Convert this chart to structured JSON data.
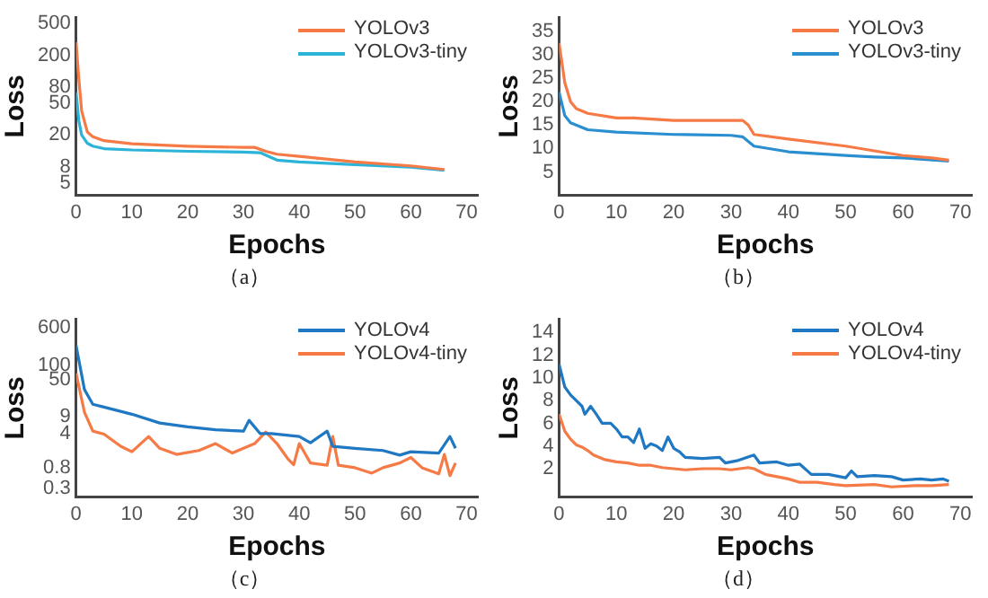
{
  "chart_data": [
    {
      "type": "line",
      "xlabel": "Epochs",
      "ylabel": "Loss",
      "annotations": [
        "（a）"
      ],
      "log": "y",
      "xlim": [
        0,
        72
      ],
      "xticks": [
        0,
        10,
        20,
        30,
        40,
        50,
        60,
        70
      ],
      "ylim": [
        3.5,
        600
      ],
      "yticks": [
        5,
        8,
        20,
        50,
        80,
        200,
        500
      ],
      "legend": "top right",
      "series": [
        {
          "name": "YOLOv3",
          "color": "#f67a45",
          "x": [
            0,
            0.5,
            1,
            2,
            3,
            5,
            10,
            20,
            30,
            32,
            34,
            36,
            40,
            50,
            60,
            66
          ],
          "values": [
            290,
            100,
            40,
            22,
            19,
            17,
            15.5,
            14.5,
            14,
            14,
            12.5,
            11.5,
            10.8,
            9.2,
            8.2,
            7.4
          ]
        },
        {
          "name": "YOLOv3-tiny",
          "color": "#2bb3d8",
          "x": [
            0,
            0.5,
            1,
            2,
            3,
            5,
            10,
            20,
            30,
            33,
            36,
            40,
            50,
            60,
            66
          ],
          "values": [
            68,
            30,
            20,
            15.8,
            14.5,
            13.5,
            13,
            12.5,
            12.2,
            12,
            9.7,
            9.2,
            8.5,
            7.9,
            7.2
          ]
        }
      ]
    },
    {
      "type": "line",
      "xlabel": "Epochs",
      "ylabel": "Loss",
      "annotations": [
        "（b）"
      ],
      "xlim": [
        0,
        72
      ],
      "xticks": [
        0,
        10,
        20,
        30,
        40,
        50,
        60,
        70
      ],
      "ylim": [
        0,
        38
      ],
      "yticks": [
        5,
        10,
        15,
        20,
        25,
        30,
        35
      ],
      "legend": "top right",
      "series": [
        {
          "name": "YOLOv3",
          "color": "#f67a45",
          "x": [
            0,
            1,
            2,
            3,
            5,
            10,
            13,
            20,
            25,
            32,
            33,
            34,
            40,
            50,
            55,
            60,
            65,
            68
          ],
          "values": [
            32.5,
            24,
            20,
            18.5,
            17.5,
            16.5,
            16.5,
            16,
            16,
            16,
            15,
            13,
            12,
            10.5,
            9.5,
            8.5,
            8,
            7.5
          ]
        },
        {
          "name": "YOLOv3-tiny",
          "color": "#2a8fd0",
          "x": [
            0,
            1,
            2,
            5,
            10,
            20,
            30,
            32,
            34,
            40,
            50,
            55,
            60,
            68
          ],
          "values": [
            22,
            17,
            15.5,
            14,
            13.5,
            13,
            12.8,
            12.5,
            10.5,
            9.3,
            8.5,
            8.2,
            8,
            7.3
          ]
        }
      ]
    },
    {
      "type": "line",
      "xlabel": "Epochs",
      "ylabel": "Loss",
      "annotations": [
        "（c）"
      ],
      "log": "y",
      "xlim": [
        0,
        72
      ],
      "xticks": [
        0,
        10,
        20,
        30,
        40,
        50,
        60,
        70
      ],
      "ylim": [
        0.2,
        900
      ],
      "yticks": [
        0.3,
        0.8,
        4,
        9,
        50,
        100,
        600
      ],
      "legend": "top right",
      "series": [
        {
          "name": "YOLOv4",
          "color": "#1f78c1",
          "x": [
            0,
            1.5,
            3,
            5,
            10,
            15,
            20,
            25,
            30,
            31,
            33,
            35,
            40,
            42,
            45,
            46,
            50,
            55,
            58,
            60,
            65,
            67,
            68
          ],
          "values": [
            257,
            32,
            16,
            14,
            10,
            6.6,
            5.5,
            4.8,
            4.5,
            7.5,
            4,
            4,
            3.5,
            2.6,
            4.5,
            2.2,
            2,
            1.8,
            1.45,
            1.7,
            1.6,
            3.5,
            2
          ]
        },
        {
          "name": "YOLOv4-tiny",
          "color": "#f67a45",
          "x": [
            0,
            1.5,
            3,
            5,
            8,
            10,
            13,
            15,
            18,
            22,
            25,
            28,
            32,
            34,
            36,
            38,
            39,
            40,
            42,
            45,
            46,
            47,
            50,
            53,
            55,
            58,
            60,
            62,
            65,
            66,
            67,
            68
          ],
          "values": [
            69,
            11,
            4.5,
            3.9,
            2.2,
            1.7,
            3.5,
            2,
            1.5,
            1.8,
            2.5,
            1.6,
            2.5,
            4.3,
            2.5,
            1.2,
            0.92,
            2.5,
            1,
            0.9,
            3.5,
            0.9,
            0.8,
            0.62,
            0.8,
            1,
            1.3,
            0.8,
            0.6,
            1.5,
            0.55,
            1
          ]
        }
      ]
    },
    {
      "type": "line",
      "xlabel": "Epochs",
      "ylabel": "Loss",
      "annotations": [
        "（d）"
      ],
      "xlim": [
        0,
        72
      ],
      "xticks": [
        0,
        10,
        20,
        30,
        40,
        50,
        60,
        70
      ],
      "ylim": [
        -0.5,
        15.2
      ],
      "yticks": [
        2,
        4,
        6,
        8,
        10,
        12,
        14
      ],
      "legend": "top right",
      "series": [
        {
          "name": "YOLOv4",
          "color": "#1f78c1",
          "x": [
            0,
            1,
            2,
            3,
            4,
            4.5,
            5.5,
            6.5,
            7.5,
            9,
            10,
            11,
            12,
            13,
            14,
            15,
            16,
            17,
            18,
            19,
            20,
            21,
            22,
            25,
            28,
            29,
            31,
            34,
            35,
            38,
            40,
            42,
            44,
            47,
            50,
            51,
            52,
            55,
            58,
            60,
            63,
            65,
            67,
            68
          ],
          "values": [
            11.2,
            9.2,
            8.5,
            8,
            7.5,
            6.8,
            7.5,
            6.8,
            6,
            6,
            5.5,
            4.8,
            4.8,
            4.3,
            5.5,
            3.8,
            4.2,
            4,
            3.6,
            4.8,
            3.8,
            3.5,
            3,
            2.9,
            3,
            2.5,
            2.7,
            3.2,
            2.5,
            2.6,
            2.3,
            2.4,
            1.5,
            1.5,
            1.2,
            1.8,
            1.3,
            1.4,
            1.3,
            1,
            1.1,
            1,
            1.1,
            0.9
          ]
        },
        {
          "name": "YOLOv4-tiny",
          "color": "#f67a45",
          "x": [
            0,
            1,
            2,
            3,
            4,
            5,
            6,
            8,
            10,
            12,
            14,
            16,
            18,
            20,
            22,
            25,
            28,
            30,
            33,
            34,
            36,
            40,
            42,
            45,
            48,
            50,
            55,
            58,
            62,
            65,
            68
          ],
          "values": [
            6.8,
            5.3,
            4.6,
            4.1,
            3.9,
            3.6,
            3.2,
            2.8,
            2.6,
            2.5,
            2.3,
            2.3,
            2.1,
            2,
            1.9,
            2,
            2,
            1.9,
            2.1,
            2,
            1.5,
            1.1,
            0.8,
            0.8,
            0.6,
            0.5,
            0.6,
            0.4,
            0.5,
            0.5,
            0.6
          ]
        }
      ]
    }
  ]
}
